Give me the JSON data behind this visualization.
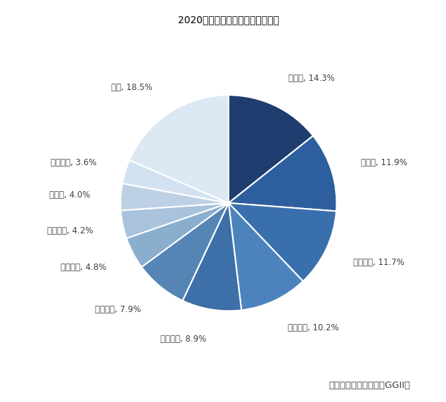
{
  "title": "2020年全球负极材料市场竞争情况",
  "source": "数据来源：高工锂电（GGII）",
  "labels": [
    "贝特瑞",
    "瑞泰来",
    "杉杉股份",
    "日立化成",
    "凯金能源",
    "浦项化学",
    "中科电气",
    "尚太科技",
    "翔丰华",
    "三菱化学",
    "其他"
  ],
  "values": [
    14.3,
    11.9,
    11.7,
    10.2,
    8.9,
    7.9,
    4.8,
    4.2,
    4.0,
    3.6,
    18.5
  ],
  "colors": [
    "#1f3d6e",
    "#2d5f9e",
    "#3a6fad",
    "#4d83bc",
    "#3d6fa8",
    "#5585b5",
    "#8aaece",
    "#a8c3db",
    "#bdd0e5",
    "#d3e2f0",
    "#dce8f3"
  ],
  "startangle": 90,
  "title_fontsize": 13,
  "legend_fontsize": 8.5,
  "source_fontsize": 9.5,
  "wedge_linewidth": 1.5,
  "wedge_edgecolor": "white",
  "label_fontsize": 8.5
}
